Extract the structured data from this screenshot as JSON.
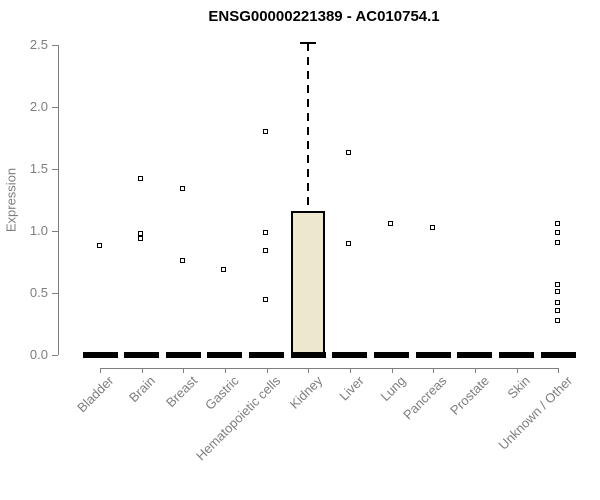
{
  "chart_data": {
    "type": "boxplot",
    "title": "ENSG00000221389 - AC010754.1",
    "xlabel": "",
    "ylabel": "Expression",
    "ylim": [
      0,
      2.57
    ],
    "grid": false,
    "legend": null,
    "y_ticks": [
      0,
      0.5,
      1,
      1.5,
      2,
      2.5
    ],
    "y_tick_labels": [
      "0.0",
      "0.5",
      "1.0",
      "1.5",
      "2.0",
      "2.5"
    ],
    "categories": [
      "Bladder",
      "Brain",
      "Breast",
      "Gastric",
      "Hematopoietic cells",
      "Kidney",
      "Liver",
      "Lung",
      "Pancreas",
      "Prostate",
      "Skin",
      "Unknown / Other"
    ],
    "boxes": [
      {
        "category": "Bladder",
        "median": 0,
        "q1": 0,
        "q3": 0,
        "whisker_low": 0,
        "whisker_high": 0,
        "outliers": [
          0.88
        ]
      },
      {
        "category": "Brain",
        "median": 0,
        "q1": 0,
        "q3": 0,
        "whisker_low": 0,
        "whisker_high": 0,
        "outliers": [
          1.42,
          0.98,
          0.94
        ]
      },
      {
        "category": "Breast",
        "median": 0,
        "q1": 0,
        "q3": 0,
        "whisker_low": 0,
        "whisker_high": 0,
        "outliers": [
          1.34,
          0.76
        ]
      },
      {
        "category": "Gastric",
        "median": 0,
        "q1": 0,
        "q3": 0,
        "whisker_low": 0,
        "whisker_high": 0,
        "outliers": [
          0.69
        ]
      },
      {
        "category": "Hematopoietic cells",
        "median": 0,
        "q1": 0,
        "q3": 0,
        "whisker_low": 0,
        "whisker_high": 0,
        "outliers": [
          1.8,
          0.99,
          0.84,
          0.45
        ]
      },
      {
        "category": "Kidney",
        "median": 0,
        "q1": 0,
        "q3": 1.16,
        "whisker_low": 0,
        "whisker_high": 2.52,
        "outliers": []
      },
      {
        "category": "Liver",
        "median": 0,
        "q1": 0,
        "q3": 0,
        "whisker_low": 0,
        "whisker_high": 0,
        "outliers": [
          1.63,
          0.9
        ]
      },
      {
        "category": "Lung",
        "median": 0,
        "q1": 0,
        "q3": 0,
        "whisker_low": 0,
        "whisker_high": 0,
        "outliers": [
          1.06
        ]
      },
      {
        "category": "Pancreas",
        "median": 0,
        "q1": 0,
        "q3": 0,
        "whisker_low": 0,
        "whisker_high": 0,
        "outliers": [
          1.03
        ]
      },
      {
        "category": "Prostate",
        "median": 0,
        "q1": 0,
        "q3": 0,
        "whisker_low": 0,
        "whisker_high": 0,
        "outliers": []
      },
      {
        "category": "Skin",
        "median": 0,
        "q1": 0,
        "q3": 0,
        "whisker_low": 0,
        "whisker_high": 0,
        "outliers": []
      },
      {
        "category": "Unknown / Other",
        "median": 0,
        "q1": 0,
        "q3": 0,
        "whisker_low": 0,
        "whisker_high": 0,
        "outliers": [
          1.06,
          0.99,
          0.91,
          0.57,
          0.51,
          0.42,
          0.36,
          0.28
        ]
      }
    ],
    "style": {
      "box_fill": "#ece7cd",
      "box_border": "#000000",
      "median_color": "#000000",
      "whisker_style": "dashed",
      "outlier_marker": "open-square",
      "axis_color": "#7e7e7e",
      "tick_text_color": "#7e7e7e",
      "title_color": "#000000",
      "background": "#ffffff"
    }
  }
}
